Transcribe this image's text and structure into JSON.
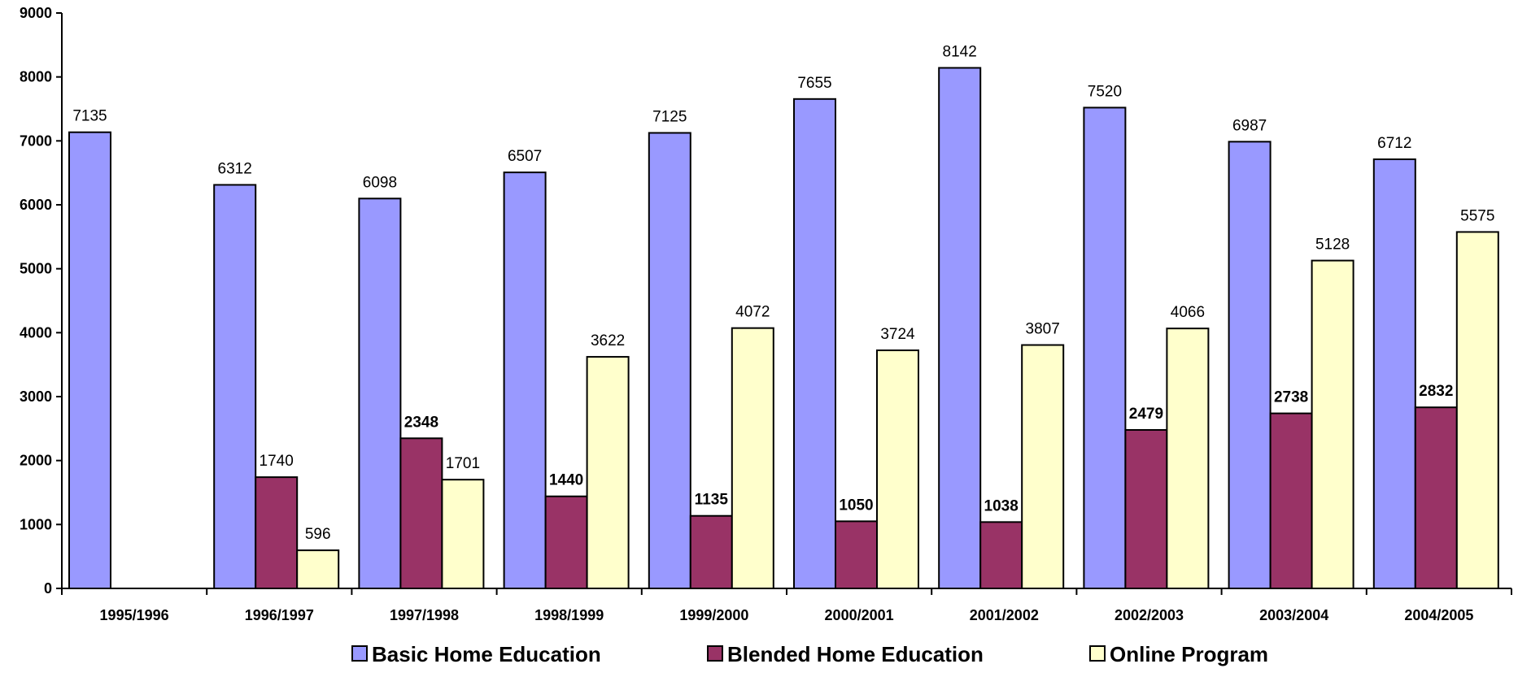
{
  "chart_data": {
    "type": "bar",
    "categories": [
      "1995/1996",
      "1996/1997",
      "1997/1998",
      "1998/1999",
      "1999/2000",
      "2000/2001",
      "2001/2002",
      "2002/2003",
      "2003/2004",
      "2004/2005"
    ],
    "series": [
      {
        "name": "Basic Home Education",
        "color": "#9999ff",
        "label_bold": false,
        "values": [
          7135,
          6312,
          6098,
          6507,
          7125,
          7655,
          8142,
          7520,
          6987,
          6712
        ]
      },
      {
        "name": "Blended Home Education",
        "color": "#993366",
        "label_bold_except_first": true,
        "values": [
          null,
          1740,
          2348,
          1440,
          1135,
          1050,
          1038,
          2479,
          2738,
          2832
        ]
      },
      {
        "name": "Online Program",
        "color": "#ffffcc",
        "label_bold": false,
        "values": [
          null,
          596,
          1701,
          3622,
          4072,
          3724,
          3807,
          4066,
          5128,
          5575
        ]
      }
    ],
    "yticks": [
      "0",
      "1000",
      "2000",
      "3000",
      "4000",
      "5000",
      "6000",
      "7000",
      "8000",
      "9000"
    ],
    "ylim": [
      0,
      9000
    ],
    "grid": false,
    "legend_position": "bottom",
    "title": "",
    "xlabel": "",
    "ylabel": ""
  }
}
